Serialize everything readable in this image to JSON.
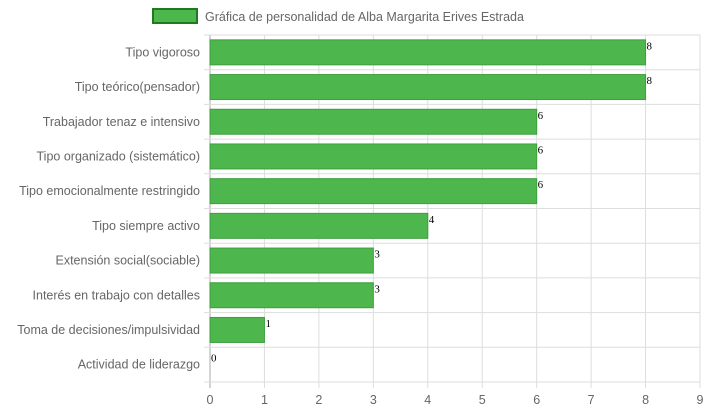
{
  "chart_data": {
    "type": "bar",
    "orientation": "horizontal",
    "legend": {
      "label": "Gráfica de personalidad de Alba Margarita Erives Estrada",
      "position": "top"
    },
    "categories": [
      "Tipo vigoroso",
      "Tipo teórico(pensador)",
      "Trabajador tenaz e intensivo",
      "Tipo organizado (sistemático)",
      "Tipo emocionalmente restringido",
      "Tipo siempre activo",
      "Extensión social(sociable)",
      "Interés en trabajo con detalles",
      "Toma de decisiones/impulsividad",
      "Actividad de liderazgo"
    ],
    "values": [
      8,
      8,
      6,
      6,
      6,
      4,
      3,
      3,
      1,
      0
    ],
    "xlim": [
      0,
      9
    ],
    "x_ticks": [
      0,
      1,
      2,
      3,
      4,
      5,
      6,
      7,
      8,
      9
    ],
    "grid": true,
    "colors": {
      "bar_fill": "#4db74d",
      "bar_stroke": "#3e9e3e",
      "legend_fill": "#4db74d",
      "legend_stroke": "#1e7a1e",
      "grid": "#dddddd",
      "zero_line": "#aaaaaa",
      "text": "#666666"
    }
  }
}
